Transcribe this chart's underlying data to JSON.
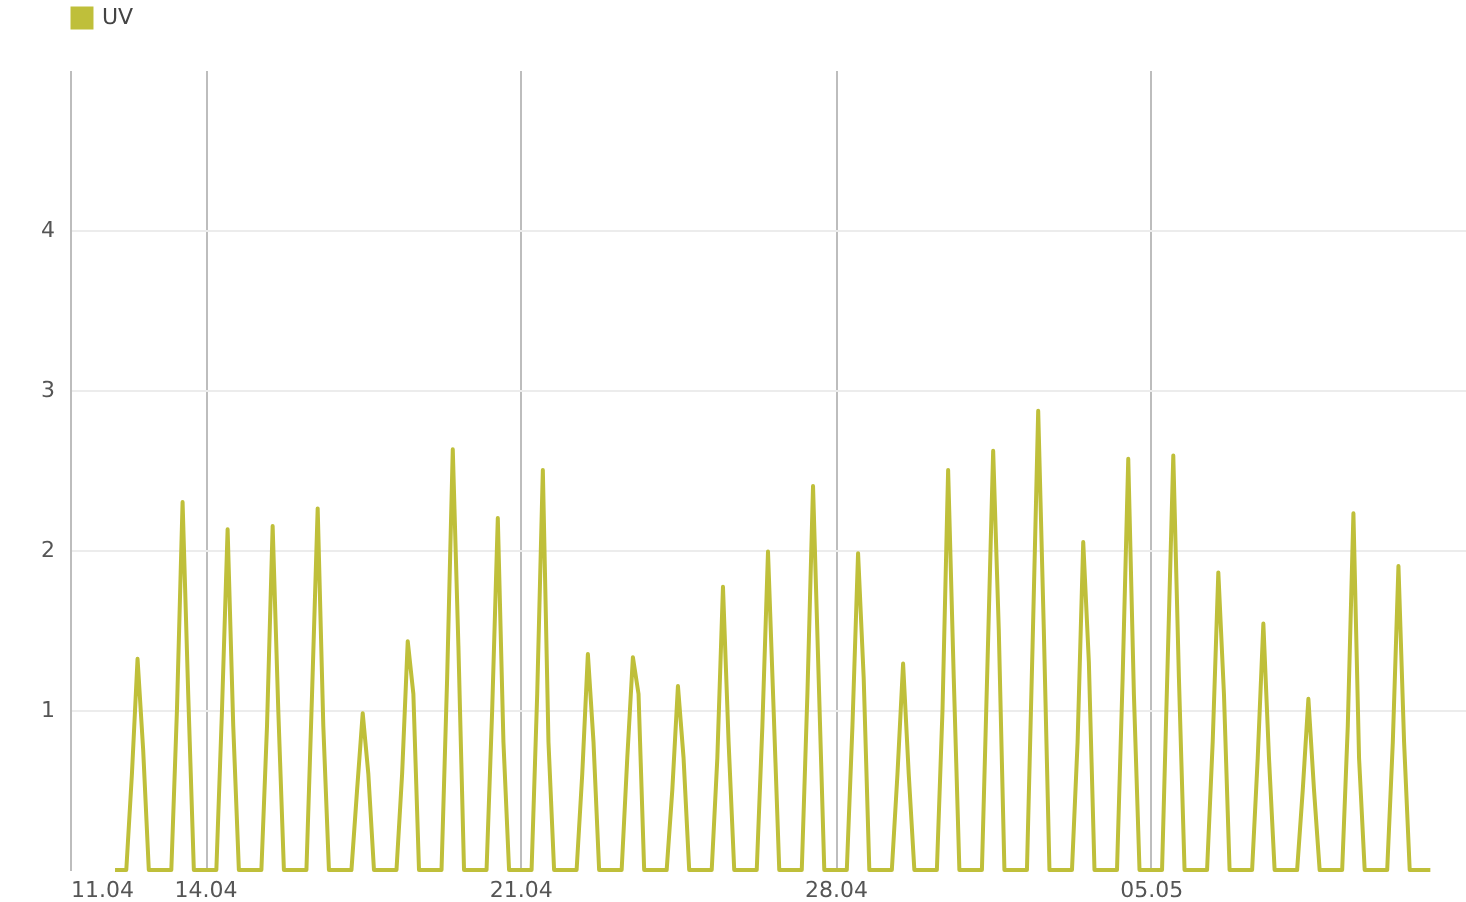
{
  "chart_data": {
    "type": "line",
    "xlim": [
      "--04-11",
      "--05-12"
    ],
    "xticks": [
      {
        "value": "--04-11",
        "label": "11.04"
      },
      {
        "value": "--04-14",
        "label": "14.04"
      },
      {
        "value": "--04-21",
        "label": "21.04"
      },
      {
        "value": "--04-28",
        "label": "28.04"
      },
      {
        "value": "--05-05",
        "label": "05.05"
      }
    ],
    "ylim": [
      0,
      5
    ],
    "yticks": [
      1,
      2,
      3,
      4
    ],
    "grid": true,
    "legend": "top left",
    "x": [
      "--04-12T00:00",
      "--04-12T06:00",
      "--04-12T09:00",
      "--04-12T12:00",
      "--04-12T15:00",
      "--04-12T18:00",
      "--04-13T06:00",
      "--04-13T09:00",
      "--04-13T12:00",
      "--04-13T15:00",
      "--04-13T18:00",
      "--04-14T06:00",
      "--04-14T09:00",
      "--04-14T12:00",
      "--04-14T15:00",
      "--04-14T18:00",
      "--04-15T06:00",
      "--04-15T09:00",
      "--04-15T12:00",
      "--04-15T15:00",
      "--04-15T18:00",
      "--04-16T06:00",
      "--04-16T09:00",
      "--04-16T12:00",
      "--04-16T15:00",
      "--04-16T18:00",
      "--04-17T06:00",
      "--04-17T09:00",
      "--04-17T12:00",
      "--04-17T15:00",
      "--04-17T18:00",
      "--04-18T06:00",
      "--04-18T09:00",
      "--04-18T12:00",
      "--04-18T15:00",
      "--04-18T18:00",
      "--04-19T06:00",
      "--04-19T09:00",
      "--04-19T12:00",
      "--04-19T15:00",
      "--04-19T18:00",
      "--04-20T06:00",
      "--04-20T09:00",
      "--04-20T12:00",
      "--04-20T15:00",
      "--04-20T18:00",
      "--04-21T06:00",
      "--04-21T09:00",
      "--04-21T12:00",
      "--04-21T15:00",
      "--04-21T18:00",
      "--04-22T06:00",
      "--04-22T09:00",
      "--04-22T12:00",
      "--04-22T15:00",
      "--04-22T18:00",
      "--04-23T06:00",
      "--04-23T09:00",
      "--04-23T12:00",
      "--04-23T15:00",
      "--04-23T18:00",
      "--04-24T06:00",
      "--04-24T09:00",
      "--04-24T12:00",
      "--04-24T15:00",
      "--04-24T18:00",
      "--04-25T06:00",
      "--04-25T09:00",
      "--04-25T12:00",
      "--04-25T15:00",
      "--04-25T18:00",
      "--04-26T06:00",
      "--04-26T09:00",
      "--04-26T12:00",
      "--04-26T15:00",
      "--04-26T18:00",
      "--04-27T06:00",
      "--04-27T09:00",
      "--04-27T12:00",
      "--04-27T15:00",
      "--04-27T18:00",
      "--04-28T06:00",
      "--04-28T09:00",
      "--04-28T12:00",
      "--04-28T15:00",
      "--04-28T18:00",
      "--04-29T06:00",
      "--04-29T09:00",
      "--04-29T12:00",
      "--04-29T15:00",
      "--04-29T18:00",
      "--04-30T06:00",
      "--04-30T09:00",
      "--04-30T12:00",
      "--04-30T15:00",
      "--04-30T18:00",
      "--05-01T06:00",
      "--05-01T09:00",
      "--05-01T12:00",
      "--05-01T15:00",
      "--05-01T18:00",
      "--05-02T06:00",
      "--05-02T09:00",
      "--05-02T12:00",
      "--05-02T15:00",
      "--05-02T18:00",
      "--05-03T06:00",
      "--05-03T09:00",
      "--05-03T12:00",
      "--05-03T15:00",
      "--05-03T18:00",
      "--05-04T06:00",
      "--05-04T09:00",
      "--05-04T12:00",
      "--05-04T15:00",
      "--05-04T18:00",
      "--05-05T06:00",
      "--05-05T09:00",
      "--05-05T12:00",
      "--05-05T15:00",
      "--05-05T18:00",
      "--05-06T06:00",
      "--05-06T09:00",
      "--05-06T12:00",
      "--05-06T15:00",
      "--05-06T18:00",
      "--05-07T06:00",
      "--05-07T09:00",
      "--05-07T12:00",
      "--05-07T15:00",
      "--05-07T18:00",
      "--05-08T06:00",
      "--05-08T09:00",
      "--05-08T12:00",
      "--05-08T15:00",
      "--05-08T18:00",
      "--05-09T06:00",
      "--05-09T09:00",
      "--05-09T12:00",
      "--05-09T15:00",
      "--05-09T18:00",
      "--05-10T06:00",
      "--05-10T09:00",
      "--05-10T12:00",
      "--05-10T15:00",
      "--05-10T18:00",
      "--05-11T05:00"
    ],
    "series": [
      {
        "name": "UV",
        "color": "#bfbf3a",
        "values": [
          0,
          0,
          0.6,
          1.32,
          0.75,
          0,
          0,
          1.0,
          2.3,
          1.1,
          0,
          0,
          1.0,
          2.13,
          0.9,
          0,
          0,
          0.9,
          2.15,
          1.0,
          0,
          0,
          1.1,
          2.26,
          0.9,
          0,
          0,
          0.5,
          0.98,
          0.6,
          0,
          0,
          0.6,
          1.43,
          1.1,
          0,
          0,
          1.2,
          2.63,
          1.4,
          0,
          0,
          1.0,
          2.2,
          0.8,
          0,
          0,
          1.1,
          2.5,
          0.8,
          0,
          0,
          0.6,
          1.35,
          0.8,
          0,
          0,
          0.7,
          1.33,
          1.1,
          0,
          0,
          0.5,
          1.15,
          0.7,
          0,
          0,
          0.7,
          1.77,
          0.8,
          0,
          0,
          0.9,
          1.99,
          1.0,
          0,
          0,
          1.1,
          2.4,
          1.2,
          0,
          0,
          0.9,
          1.98,
          1.2,
          0,
          0,
          0.6,
          1.29,
          0.6,
          0,
          0,
          1.0,
          2.5,
          1.2,
          0,
          0,
          1.3,
          2.62,
          1.5,
          0,
          0,
          1.4,
          2.87,
          1.5,
          0,
          0,
          0.8,
          2.05,
          1.3,
          0,
          0,
          1.2,
          2.57,
          1.1,
          0,
          0,
          1.3,
          2.59,
          1.2,
          0,
          0,
          0.8,
          1.86,
          1.1,
          0,
          0,
          0.7,
          1.54,
          0.7,
          0,
          0,
          0.5,
          1.07,
          0.5,
          0,
          0,
          0.9,
          2.23,
          0.7,
          0,
          0,
          0.8,
          1.9,
          0.8,
          0,
          0
        ]
      }
    ]
  }
}
